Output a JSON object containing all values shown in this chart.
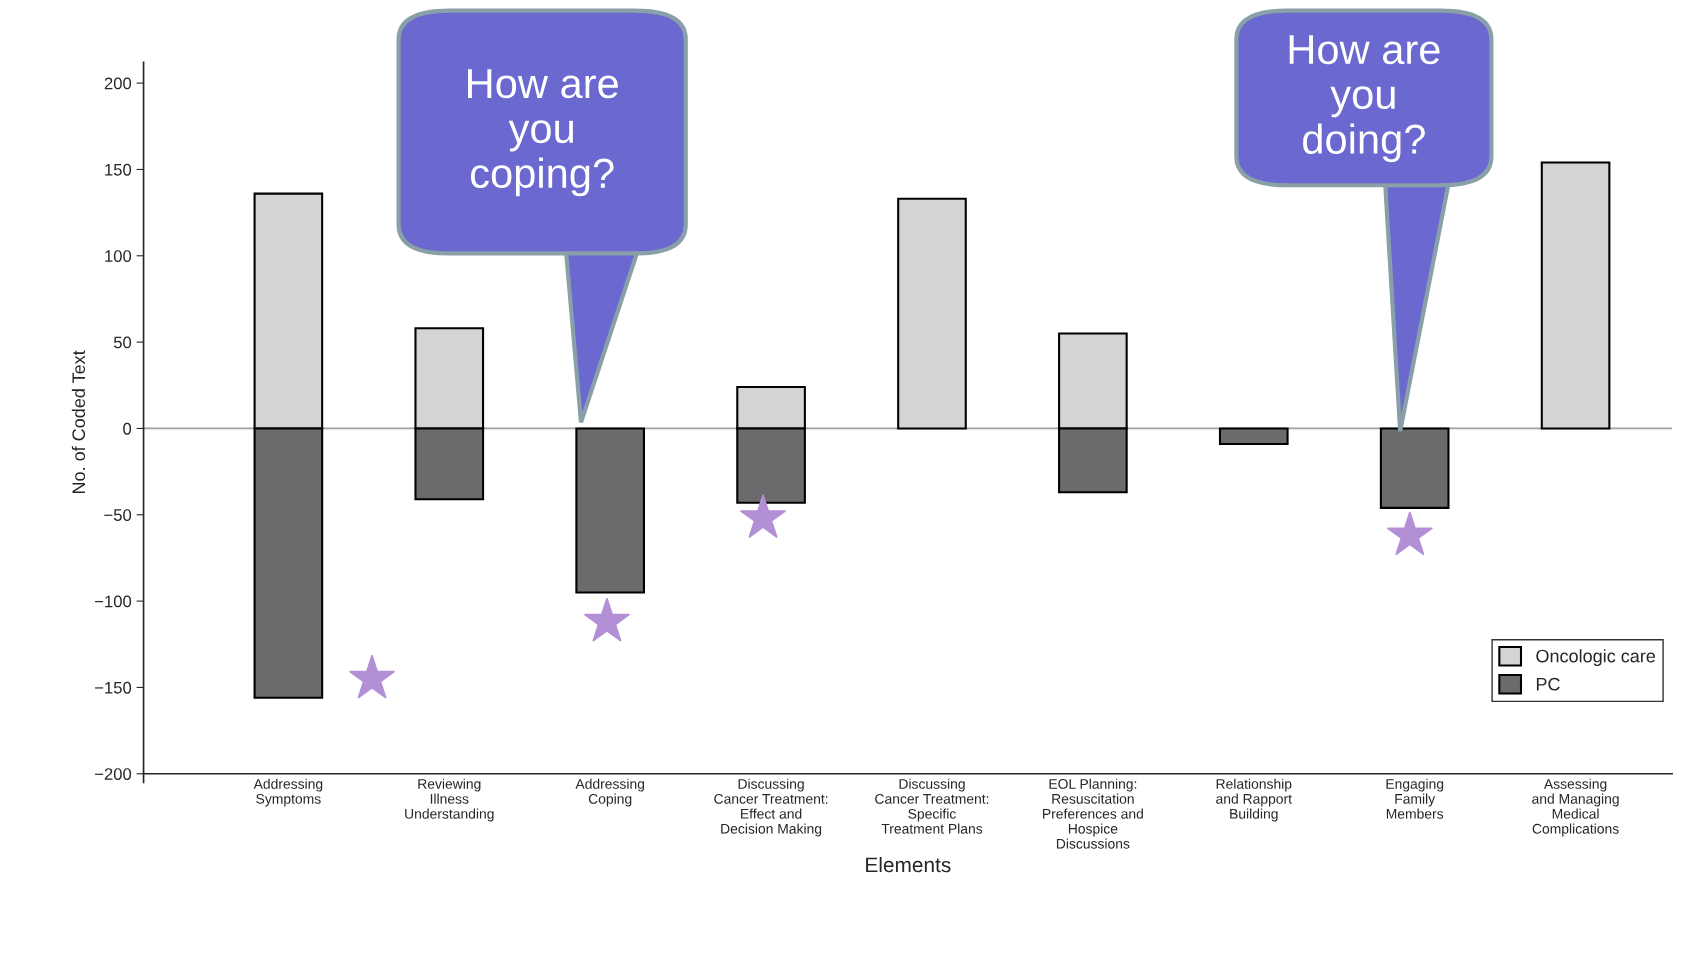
{
  "chart_data": {
    "type": "bar",
    "xlabel": "Elements",
    "ylabel": "No. of Coded Text",
    "categories": [
      "Addressing\nSymptoms",
      "Reviewing\nIllness\nUnderstanding",
      "Addressing\nCoping",
      "Discussing\nCancer Treatment:\nEffect and\nDecision Making",
      "Discussing\nCancer Treatment:\nSpecific\nTreatment Plans",
      "EOL Planning:\nResuscitation\nPreferences and\nHospice\nDiscussions",
      "Relationship\nand Rapport\nBuilding",
      "Engaging\nFamily\nMembers",
      "Assessing\nand Managing\nMedical\nComplications"
    ],
    "series": [
      {
        "name": "Oncologic care",
        "color": "#d4d4d6",
        "values": [
          136,
          58,
          null,
          24,
          133,
          55,
          null,
          null,
          154
        ]
      },
      {
        "name": "PC",
        "color": "#6b6b6d",
        "values": [
          -156,
          -41,
          -95,
          -43,
          null,
          -37,
          -9,
          -46,
          null
        ]
      }
    ],
    "ylim": [
      -205,
      212
    ],
    "yticks": [
      {
        "value": -200,
        "label": "−200"
      },
      {
        "value": -150,
        "label": "−150"
      },
      {
        "value": -100,
        "label": "−100"
      },
      {
        "value": -50,
        "label": "−50"
      },
      0,
      50,
      100,
      150,
      200
    ],
    "ref_lines": [
      {
        "axis": "y",
        "value": 0,
        "color": "#a0a0a0"
      }
    ],
    "annotations": [
      "How are\nyou\ncoping?",
      "How are\nyou\ndoing?"
    ],
    "legend": "bottom right",
    "grid": false
  }
}
